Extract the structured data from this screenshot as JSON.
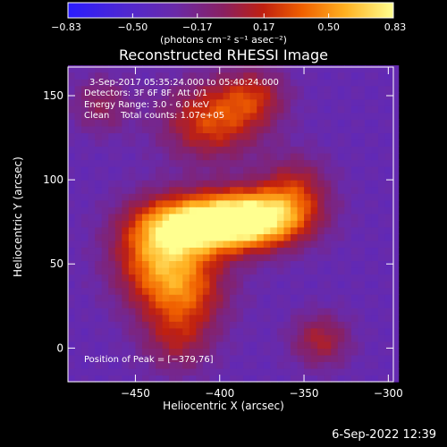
{
  "chart_data": {
    "type": "heatmap",
    "title": "Reconstructed RHESSI Image",
    "xlabel": "Heliocentric X (arcsec)",
    "ylabel": "Heliocentric Y (arcsec)",
    "xlim": [
      -490,
      -297
    ],
    "ylim": [
      -20,
      167
    ],
    "xticks": [
      -450,
      -400,
      -350,
      -300
    ],
    "xtick_labels": [
      "−450",
      "−400",
      "−350",
      "−300"
    ],
    "yticks": [
      0,
      50,
      100,
      150
    ],
    "ytick_labels": [
      "0",
      "50",
      "100",
      "150"
    ],
    "colorbar": {
      "min": -0.83,
      "max": 0.83,
      "ticks": [
        -0.83,
        -0.5,
        -0.17,
        0.17,
        0.5,
        0.83
      ],
      "tick_labels": [
        "−0.83",
        "−0.50",
        "−0.17",
        "0.17",
        "0.50",
        "0.83"
      ],
      "unit": "(photons cm⁻² s⁻¹ asec⁻²)"
    },
    "annotations": {
      "time": "3-Sep-2017 05:35:24.000 to 05:40:24.000",
      "detectors": "Detectors: 3F 6F 8F, Att 0/1",
      "energy": "Energy Range: 3.0 - 6.0 keV",
      "clean": "Clean    Total counts: 1.07e+05",
      "peak": "Position of Peak = [−379,76]"
    },
    "peak_position": [
      -379,
      76
    ],
    "emission_regions": [
      {
        "x": -380,
        "y": 77,
        "amp": 1.0,
        "sx": 22,
        "sy": 12
      },
      {
        "x": -415,
        "y": 73,
        "amp": 0.8,
        "sx": 22,
        "sy": 12
      },
      {
        "x": -438,
        "y": 55,
        "amp": 0.55,
        "sx": 18,
        "sy": 20
      },
      {
        "x": -420,
        "y": 35,
        "amp": 0.45,
        "sx": 18,
        "sy": 16
      },
      {
        "x": -405,
        "y": 135,
        "amp": 0.5,
        "sx": 20,
        "sy": 16
      },
      {
        "x": -380,
        "y": 150,
        "amp": 0.35,
        "sx": 14,
        "sy": 12
      },
      {
        "x": -355,
        "y": 95,
        "amp": 0.35,
        "sx": 14,
        "sy": 14
      },
      {
        "x": -340,
        "y": 5,
        "amp": 0.35,
        "sx": 12,
        "sy": 11
      },
      {
        "x": -425,
        "y": 5,
        "amp": 0.3,
        "sx": 15,
        "sy": 14
      },
      {
        "x": -470,
        "y": 145,
        "amp": 0.25,
        "sx": 12,
        "sy": 12
      }
    ],
    "colors": {
      "low": "#3020ff",
      "mid": "#802080",
      "high": "#ffff80",
      "background": "#000000",
      "foreground": "#ffffff"
    }
  },
  "footer": {
    "timestamp": "6-Sep-2022 12:39"
  }
}
